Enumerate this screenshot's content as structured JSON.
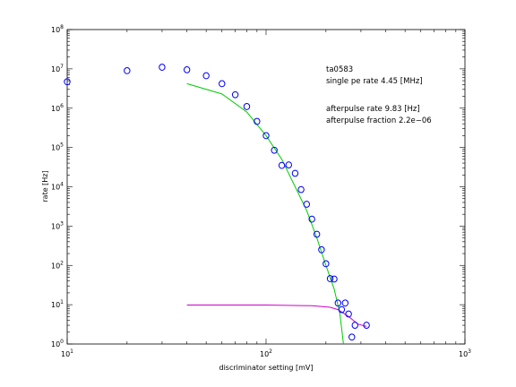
{
  "chart_data": {
    "type": "scatter",
    "xlabel": "discriminator setting [mV]",
    "ylabel": "rate [Hz]",
    "x_scale": "log",
    "y_scale": "log",
    "xlim": [
      10,
      1000
    ],
    "ylim": [
      1,
      100000000
    ],
    "grid": false,
    "x_ticks": [
      {
        "value": 10,
        "base": "10",
        "exp": "1"
      },
      {
        "value": 100,
        "base": "10",
        "exp": "2"
      },
      {
        "value": 1000,
        "base": "10",
        "exp": "3"
      }
    ],
    "y_ticks": [
      {
        "value": 1,
        "base": "10",
        "exp": "0"
      },
      {
        "value": 10,
        "base": "10",
        "exp": "1"
      },
      {
        "value": 100,
        "base": "10",
        "exp": "2"
      },
      {
        "value": 1000,
        "base": "10",
        "exp": "3"
      },
      {
        "value": 10000,
        "base": "10",
        "exp": "4"
      },
      {
        "value": 100000,
        "base": "10",
        "exp": "5"
      },
      {
        "value": 1000000,
        "base": "10",
        "exp": "6"
      },
      {
        "value": 10000000,
        "base": "10",
        "exp": "7"
      },
      {
        "value": 100000000,
        "base": "10",
        "exp": "8"
      }
    ],
    "annotations": [
      "ta0583",
      "single pe rate 4.45 [MHz]",
      "afterpulse rate 9.83 [Hz]",
      "afterpulse fraction 2.2e−06"
    ],
    "series": [
      {
        "type": "scatter",
        "color": "#0000ff",
        "points": [
          [
            10,
            4700000
          ],
          [
            20,
            9000000
          ],
          [
            30,
            11000000
          ],
          [
            40,
            9500000
          ],
          [
            50,
            6700000
          ],
          [
            60,
            4200000
          ],
          [
            70,
            2200000
          ],
          [
            80,
            1100000
          ],
          [
            90,
            460000
          ],
          [
            100,
            200000
          ],
          [
            110,
            85000
          ],
          [
            120,
            35000
          ],
          [
            130,
            36000
          ],
          [
            140,
            22000
          ],
          [
            150,
            8500
          ],
          [
            160,
            3600
          ],
          [
            170,
            1500
          ],
          [
            180,
            620
          ],
          [
            190,
            250
          ],
          [
            200,
            110
          ],
          [
            210,
            46
          ],
          [
            220,
            45
          ],
          [
            230,
            11
          ],
          [
            240,
            7.5
          ],
          [
            250,
            11
          ],
          [
            260,
            5.8
          ],
          [
            270,
            1.5
          ],
          [
            280,
            3
          ],
          [
            320,
            3
          ]
        ]
      },
      {
        "type": "line",
        "color": "#00cc00",
        "points": [
          [
            40,
            4200000
          ],
          [
            60,
            2300000
          ],
          [
            80,
            800000
          ],
          [
            100,
            200000
          ],
          [
            120,
            50000
          ],
          [
            140,
            10000
          ],
          [
            160,
            2500
          ],
          [
            180,
            500
          ],
          [
            200,
            100
          ],
          [
            220,
            25
          ],
          [
            235,
            6
          ],
          [
            245,
            1
          ]
        ]
      },
      {
        "type": "line",
        "color": "#cc00cc",
        "points": [
          [
            40,
            9.8
          ],
          [
            100,
            9.8
          ],
          [
            150,
            9.5
          ],
          [
            170,
            9.4
          ],
          [
            190,
            9.0
          ],
          [
            210,
            8.6
          ],
          [
            230,
            7.5
          ],
          [
            260,
            5.0
          ],
          [
            290,
            3.2
          ],
          [
            320,
            2.8
          ]
        ]
      }
    ]
  }
}
